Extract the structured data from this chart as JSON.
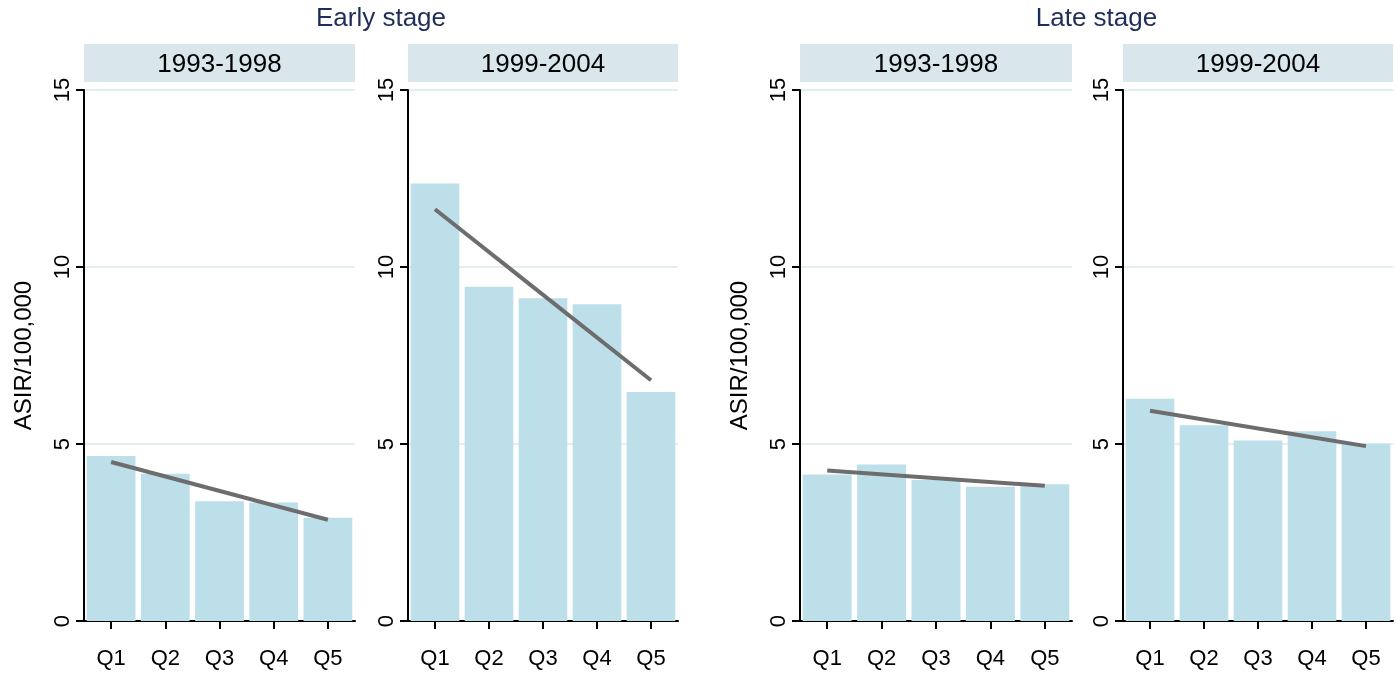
{
  "chart_data": [
    {
      "type": "bar",
      "title": "Early stage",
      "subtitle": "1993-1998",
      "ylabel": "ASIR/100,000",
      "categories": [
        "Q1",
        "Q2",
        "Q3",
        "Q4",
        "Q5"
      ],
      "ylim": [
        0,
        15
      ],
      "yticks": [
        0,
        5,
        10,
        15
      ],
      "grid": "y",
      "series": [
        {
          "color": "#bddfe9",
          "values": [
            4.66,
            4.16,
            3.38,
            3.35,
            2.92
          ]
        },
        {
          "type": "line",
          "color": "#6d6d6d",
          "x": [
            "Q1",
            "Q5"
          ],
          "values": [
            4.49,
            2.86
          ]
        }
      ]
    },
    {
      "type": "bar",
      "subtitle": "1999-2004",
      "categories": [
        "Q1",
        "Q2",
        "Q3",
        "Q4",
        "Q5"
      ],
      "ylim": [
        0,
        15
      ],
      "yticks": [
        0,
        5,
        10,
        15
      ],
      "grid": "y",
      "series": [
        {
          "color": "#bddfe9",
          "values": [
            12.36,
            9.44,
            9.12,
            8.95,
            6.47
          ]
        },
        {
          "type": "line",
          "color": "#6d6d6d",
          "x": [
            "Q1",
            "Q5"
          ],
          "values": [
            11.63,
            6.8
          ]
        }
      ]
    },
    {
      "type": "bar",
      "title": "Late stage",
      "subtitle": "1993-1998",
      "ylabel": "ASIR/100,000",
      "categories": [
        "Q1",
        "Q2",
        "Q3",
        "Q4",
        "Q5"
      ],
      "ylim": [
        0,
        15
      ],
      "yticks": [
        0,
        5,
        10,
        15
      ],
      "grid": "y",
      "series": [
        {
          "color": "#bddfe9",
          "values": [
            4.14,
            4.42,
            3.98,
            3.79,
            3.86
          ]
        },
        {
          "type": "line",
          "color": "#6d6d6d",
          "x": [
            "Q1",
            "Q5"
          ],
          "values": [
            4.25,
            3.82
          ]
        }
      ]
    },
    {
      "type": "bar",
      "subtitle": "1999-2004",
      "categories": [
        "Q1",
        "Q2",
        "Q3",
        "Q4",
        "Q5"
      ],
      "ylim": [
        0,
        15
      ],
      "yticks": [
        0,
        5,
        10,
        15
      ],
      "grid": "y",
      "series": [
        {
          "color": "#bddfe9",
          "values": [
            6.28,
            5.53,
            5.1,
            5.36,
            5.01
          ]
        },
        {
          "type": "line",
          "color": "#6d6d6d",
          "x": [
            "Q1",
            "Q5"
          ],
          "values": [
            5.94,
            4.94
          ]
        }
      ]
    }
  ]
}
